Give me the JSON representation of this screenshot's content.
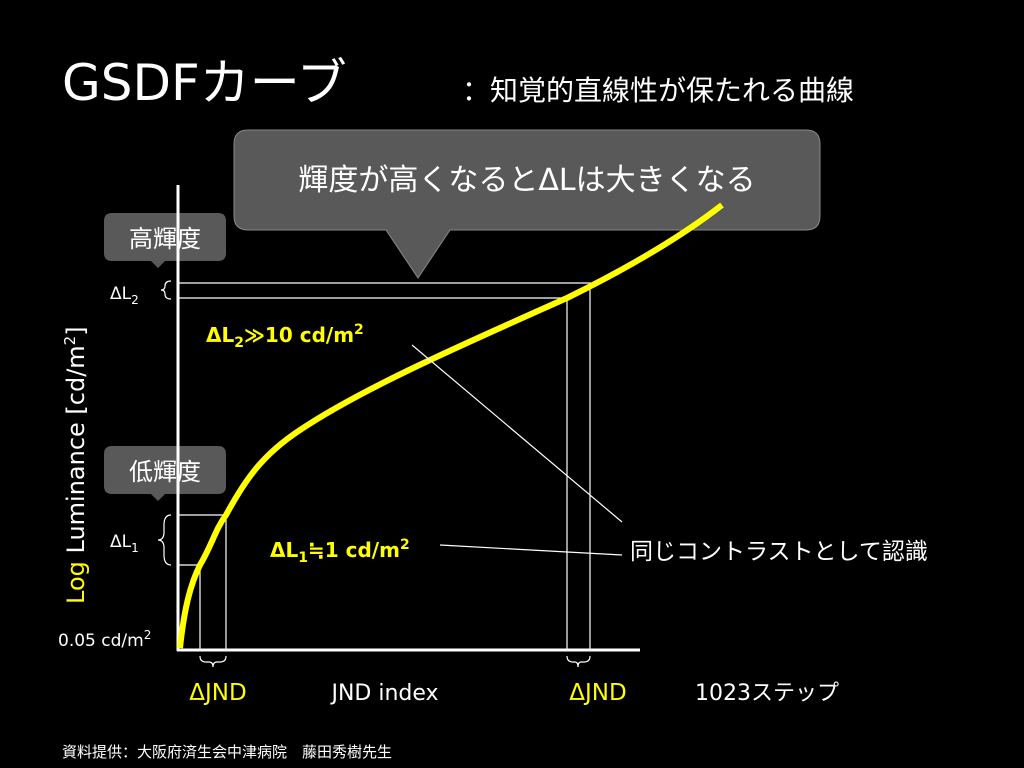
{
  "header": {
    "title": "GSDFカーブ",
    "subtitle": "：知覚的直線性が保たれる曲線"
  },
  "callout": "輝度が高くなるとΔLは大きくなる",
  "badges": {
    "high": "高輝度",
    "low": "低輝度"
  },
  "y_axis": {
    "prefix": "Log",
    "label": " Luminance [cd/m",
    "sup": "2",
    "suffix": "]"
  },
  "delta_l2": {
    "base": "ΔL",
    "sub": "2"
  },
  "delta_l1": {
    "base": "ΔL",
    "sub": "1"
  },
  "min_label": {
    "text": "0.05 cd/m",
    "sup": "2"
  },
  "note_high": {
    "base": "ΔL",
    "sub": "2",
    "rel": "≫",
    "value": "10 cd/m",
    "sup": "2"
  },
  "note_low": {
    "base": "ΔL",
    "sub": "1",
    "rel": "≒",
    "value": "1 cd/m",
    "sup": "2"
  },
  "same_contrast": "同じコントラストとして認識",
  "x_axis": {
    "jnd_left": "ΔJND",
    "label": "JND index",
    "jnd_right": "ΔJND",
    "steps": "1023ステップ"
  },
  "footer": "資料提供：大阪府済生会中津病院　藤田秀樹先生"
}
